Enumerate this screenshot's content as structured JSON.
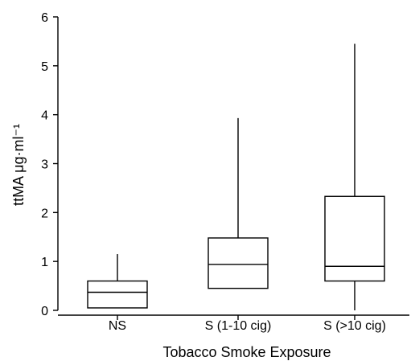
{
  "chart_data": {
    "type": "boxplot",
    "title": "",
    "xlabel": "Tobacco Smoke Exposure",
    "ylabel": "ttMA μg·ml⁻¹",
    "ylim": [
      0,
      6
    ],
    "yticks": [
      0,
      1,
      2,
      3,
      4,
      5,
      6
    ],
    "grid": false,
    "categories": [
      "NS",
      "S (1-10 cig)",
      "S (>10 cig)"
    ],
    "boxes": [
      {
        "category": "NS",
        "min": 0.05,
        "q1": 0.05,
        "median": 0.37,
        "q3": 0.6,
        "max": 1.15
      },
      {
        "category": "S (1-10 cig)",
        "min": 0.45,
        "q1": 0.45,
        "median": 0.94,
        "q3": 1.48,
        "max": 3.93
      },
      {
        "category": "S (>10 cig)",
        "min": 0.0,
        "q1": 0.6,
        "median": 0.9,
        "q3": 2.33,
        "max": 5.45
      }
    ]
  }
}
